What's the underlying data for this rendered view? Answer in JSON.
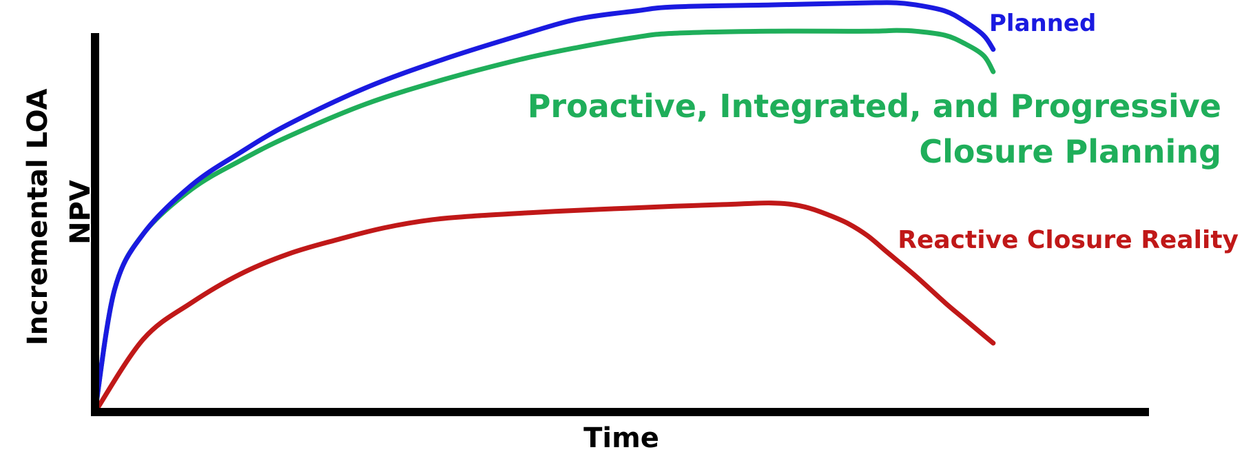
{
  "chart_data": {
    "type": "line",
    "title": "",
    "xlabel": "Time",
    "ylabel": [
      "Incremental LOA",
      "NPV"
    ],
    "xlim": [
      0,
      100
    ],
    "ylim": [
      0,
      100
    ],
    "grid": false,
    "legend": "inline labels at the right end of each line",
    "axis_color": "#000000",
    "series": [
      {
        "name": "Planned",
        "color": "#1a1ae0",
        "x": [
          0,
          2,
          5,
          10,
          15,
          20,
          28,
          36,
          44,
          50,
          56,
          60,
          70,
          80,
          83,
          85,
          88,
          90,
          92,
          93
        ],
        "y": [
          0,
          30,
          44,
          56,
          64,
          71,
          80,
          87,
          93,
          97,
          99,
          100,
          100.5,
          101,
          101,
          100.5,
          99,
          96.5,
          93,
          89.5
        ]
      },
      {
        "name": "Proactive, Integrated, and Progressive\nClosure Planning",
        "color": "#1fae5a",
        "x": [
          0,
          2,
          5,
          10,
          15,
          20,
          28,
          36,
          44,
          50,
          56,
          60,
          70,
          80,
          83,
          85,
          88,
          90,
          92,
          93
        ],
        "y": [
          0,
          30,
          44,
          55,
          62,
          68,
          76,
          82,
          87,
          90,
          92.5,
          93.5,
          94,
          94,
          94.2,
          94,
          93,
          91,
          88,
          84
        ]
      },
      {
        "name": "Reactive Closure Reality",
        "color": "#c01818",
        "x": [
          0,
          5,
          10,
          15,
          20,
          25,
          30,
          35,
          40,
          45,
          50,
          55,
          60,
          65,
          68,
          70,
          72,
          74,
          76,
          78,
          80,
          82,
          85,
          88,
          90,
          92,
          93
        ],
        "y": [
          0,
          18,
          27,
          34,
          39,
          42.5,
          45.5,
          47.5,
          48.5,
          49.2,
          49.8,
          50.3,
          50.8,
          51.2,
          51.5,
          51.6,
          51.3,
          50.3,
          48.6,
          46.5,
          43.5,
          39.5,
          33.5,
          27,
          23,
          19,
          17
        ]
      }
    ]
  }
}
